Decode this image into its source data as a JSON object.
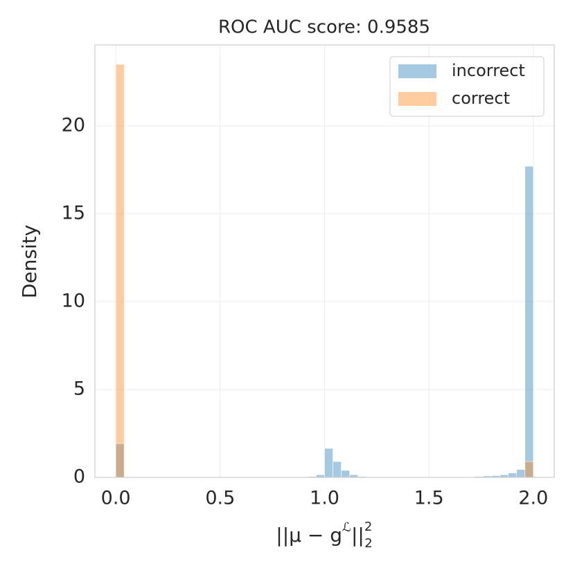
{
  "chart_data": {
    "type": "histogram",
    "title": "ROC AUC score: 0.9585",
    "xlabel": [
      "||μ − g",
      "ℒ",
      "||",
      "2",
      "2"
    ],
    "ylabel": "Density",
    "bins": [
      0,
      0.04,
      0.08,
      0.12,
      0.16,
      0.2,
      0.24,
      0.28,
      0.32,
      0.36,
      0.4,
      0.44,
      0.48,
      0.52,
      0.56,
      0.6,
      0.64,
      0.68,
      0.72,
      0.76,
      0.8,
      0.84,
      0.88,
      0.92,
      0.96,
      1.0,
      1.04,
      1.08,
      1.12,
      1.16,
      1.2,
      1.24,
      1.28,
      1.32,
      1.36,
      1.4,
      1.44,
      1.48,
      1.52,
      1.56,
      1.6,
      1.64,
      1.68,
      1.72,
      1.76,
      1.8,
      1.84,
      1.88,
      1.92,
      1.96,
      2.0
    ],
    "series": [
      {
        "name": "incorrect",
        "color": "#1f77b4",
        "values": [
          1.9,
          0,
          0,
          0,
          0,
          0,
          0,
          0,
          0,
          0,
          0,
          0,
          0,
          0,
          0,
          0,
          0,
          0,
          0,
          0,
          0,
          0,
          0,
          0.05,
          0.15,
          1.65,
          0.9,
          0.4,
          0.15,
          0.05,
          0.02,
          0,
          0,
          0,
          0,
          0,
          0,
          0,
          0,
          0,
          0,
          0,
          0.03,
          0.05,
          0.08,
          0.1,
          0.15,
          0.25,
          0.45,
          17.7
        ]
      },
      {
        "name": "correct",
        "color": "#ff7f0e",
        "values": [
          23.5,
          0,
          0,
          0,
          0,
          0,
          0,
          0,
          0,
          0,
          0,
          0,
          0,
          0,
          0,
          0,
          0,
          0,
          0,
          0,
          0,
          0,
          0,
          0,
          0,
          0,
          0,
          0,
          0,
          0,
          0,
          0,
          0,
          0,
          0,
          0,
          0,
          0,
          0,
          0,
          0,
          0,
          0,
          0,
          0,
          0,
          0,
          0,
          0,
          0.9
        ]
      }
    ],
    "xlim": [
      -0.1,
      2.1
    ],
    "ylim": [
      0,
      24.6
    ],
    "xticks": [
      {
        "value": 0,
        "label": "0.0"
      },
      0.5,
      {
        "value": 1,
        "label": "1.0"
      },
      1.5,
      {
        "value": 2,
        "label": "2.0"
      }
    ],
    "yticks": [
      0,
      5,
      10,
      15,
      20
    ],
    "grid": true,
    "legend": "upper right"
  }
}
